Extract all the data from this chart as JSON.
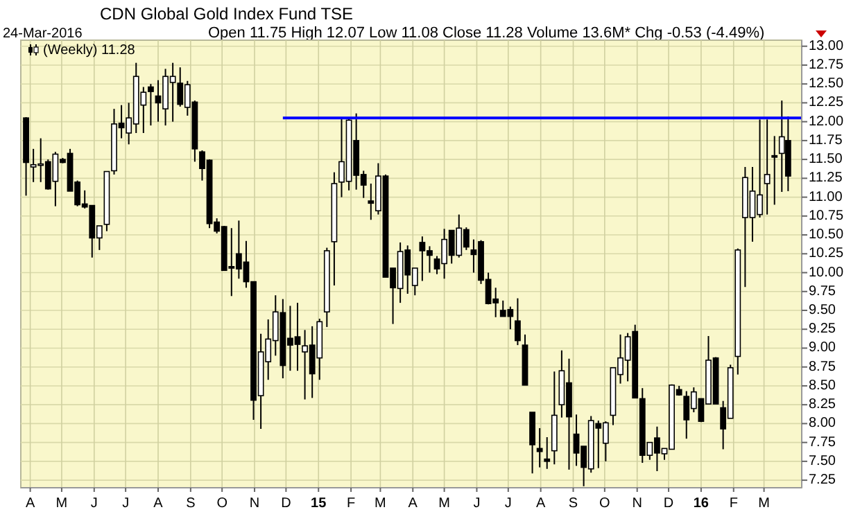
{
  "chart_data": {
    "type": "candlestick",
    "title": "CDN Global Gold Index Fund TSE",
    "annotations": [
      "24-Mar-2016",
      "Open 11.75 High 12.07 Low 11.08 Close 11.28 Volume 13.6M* Chg -0.53 (-4.49%)"
    ],
    "x": [
      "2014-03-28",
      "2014-04-04",
      "2014-04-11",
      "2014-04-18",
      "2014-04-25",
      "2014-05-02",
      "2014-05-09",
      "2014-05-16",
      "2014-05-23",
      "2014-05-30",
      "2014-06-06",
      "2014-06-13",
      "2014-06-20",
      "2014-06-27",
      "2014-07-04",
      "2014-07-11",
      "2014-07-18",
      "2014-07-25",
      "2014-08-01",
      "2014-08-08",
      "2014-08-15",
      "2014-08-22",
      "2014-08-29",
      "2014-09-05",
      "2014-09-12",
      "2014-09-19",
      "2014-09-26",
      "2014-10-03",
      "2014-10-10",
      "2014-10-17",
      "2014-10-24",
      "2014-10-31",
      "2014-11-07",
      "2014-11-14",
      "2014-11-21",
      "2014-11-28",
      "2014-12-05",
      "2014-12-12",
      "2014-12-19",
      "2014-12-26",
      "2015-01-02",
      "2015-01-09",
      "2015-01-16",
      "2015-01-23",
      "2015-01-30",
      "2015-02-06",
      "2015-02-13",
      "2015-02-20",
      "2015-02-27",
      "2015-03-06",
      "2015-03-13",
      "2015-03-20",
      "2015-03-27",
      "2015-04-03",
      "2015-04-10",
      "2015-04-17",
      "2015-04-24",
      "2015-05-01",
      "2015-05-08",
      "2015-05-15",
      "2015-05-22",
      "2015-05-29",
      "2015-06-05",
      "2015-06-12",
      "2015-06-19",
      "2015-06-26",
      "2015-07-03",
      "2015-07-10",
      "2015-07-17",
      "2015-07-24",
      "2015-07-31",
      "2015-08-07",
      "2015-08-14",
      "2015-08-21",
      "2015-08-28",
      "2015-09-04",
      "2015-09-11",
      "2015-09-18",
      "2015-09-25",
      "2015-10-02",
      "2015-10-09",
      "2015-10-16",
      "2015-10-23",
      "2015-10-30",
      "2015-11-06",
      "2015-11-13",
      "2015-11-20",
      "2015-11-27",
      "2015-12-04",
      "2015-12-11",
      "2015-12-18",
      "2015-12-25",
      "2016-01-01",
      "2016-01-08",
      "2016-01-15",
      "2016-01-22",
      "2016-01-29",
      "2016-02-05",
      "2016-02-12",
      "2016-02-19",
      "2016-02-26",
      "2016-03-04",
      "2016-03-11",
      "2016-03-18",
      "2016-03-24"
    ],
    "series": [
      {
        "name": "(Weekly) 11.28",
        "color": "#000000",
        "ohlc": [
          [
            12.05,
            12.06,
            11.02,
            11.46
          ],
          [
            11.4,
            11.64,
            11.2,
            11.43
          ],
          [
            11.43,
            11.78,
            11.2,
            11.44
          ],
          [
            11.47,
            11.5,
            11.1,
            11.11
          ],
          [
            11.21,
            11.6,
            10.88,
            11.57
          ],
          [
            11.5,
            11.52,
            11.45,
            11.46
          ],
          [
            11.58,
            11.64,
            11.08,
            11.08
          ],
          [
            11.2,
            11.22,
            10.88,
            10.9
          ],
          [
            10.91,
            11.09,
            10.85,
            10.87
          ],
          [
            10.89,
            10.89,
            10.2,
            10.46
          ],
          [
            10.46,
            10.62,
            10.3,
            10.62
          ],
          [
            10.64,
            11.34,
            10.55,
            11.34
          ],
          [
            11.35,
            12.17,
            11.3,
            11.97
          ],
          [
            11.98,
            12.22,
            11.78,
            11.92
          ],
          [
            11.85,
            12.25,
            11.7,
            12.05
          ],
          [
            11.97,
            12.78,
            11.85,
            12.6
          ],
          [
            12.22,
            12.46,
            11.85,
            12.39
          ],
          [
            12.46,
            12.5,
            11.95,
            12.4
          ],
          [
            12.34,
            12.55,
            12.0,
            12.25
          ],
          [
            12.17,
            12.7,
            11.95,
            12.6
          ],
          [
            12.52,
            12.78,
            12.0,
            12.6
          ],
          [
            12.51,
            12.72,
            12.2,
            12.23
          ],
          [
            12.19,
            12.54,
            12.08,
            12.49
          ],
          [
            12.26,
            12.28,
            11.47,
            11.64
          ],
          [
            11.6,
            11.62,
            11.22,
            11.38
          ],
          [
            11.49,
            11.5,
            10.59,
            10.65
          ],
          [
            10.67,
            10.72,
            10.52,
            10.55
          ],
          [
            10.61,
            10.62,
            10.03,
            10.03
          ],
          [
            10.08,
            10.59,
            9.69,
            10.06
          ],
          [
            10.25,
            10.69,
            9.92,
            10.05
          ],
          [
            10.14,
            10.42,
            9.8,
            9.88
          ],
          [
            9.88,
            9.88,
            8.05,
            8.31
          ],
          [
            8.37,
            9.19,
            7.93,
            8.95
          ],
          [
            8.82,
            9.38,
            8.58,
            9.12
          ],
          [
            9.1,
            9.7,
            8.9,
            9.48
          ],
          [
            9.47,
            9.65,
            8.6,
            8.77
          ],
          [
            9.13,
            9.56,
            8.7,
            9.04
          ],
          [
            9.15,
            9.6,
            8.7,
            9.05
          ],
          [
            8.95,
            9.24,
            8.32,
            9.03
          ],
          [
            9.04,
            9.29,
            8.34,
            8.66
          ],
          [
            8.87,
            9.39,
            8.58,
            9.35
          ],
          [
            9.48,
            10.33,
            9.28,
            10.29
          ],
          [
            10.41,
            11.33,
            9.83,
            11.18
          ],
          [
            11.2,
            12.05,
            11.0,
            11.47
          ],
          [
            11.21,
            12.05,
            11.09,
            12.02
          ],
          [
            11.75,
            12.11,
            11.1,
            11.29
          ],
          [
            11.3,
            11.35,
            10.99,
            11.16
          ],
          [
            10.95,
            11.18,
            10.7,
            10.92
          ],
          [
            10.82,
            11.45,
            10.77,
            11.28
          ],
          [
            11.28,
            11.3,
            9.94,
            9.94
          ],
          [
            10.06,
            10.06,
            9.32,
            9.8
          ],
          [
            9.79,
            10.4,
            9.6,
            10.28
          ],
          [
            10.3,
            10.36,
            9.72,
            9.97
          ],
          [
            9.83,
            10.06,
            9.7,
            10.06
          ],
          [
            10.4,
            10.48,
            9.89,
            10.29
          ],
          [
            10.29,
            10.35,
            10.0,
            10.23
          ],
          [
            10.18,
            10.22,
            9.98,
            10.05
          ],
          [
            10.12,
            10.58,
            9.92,
            10.44
          ],
          [
            10.56,
            10.56,
            10.12,
            10.23
          ],
          [
            10.23,
            10.77,
            10.2,
            10.59
          ],
          [
            10.57,
            10.6,
            10.3,
            10.34
          ],
          [
            10.3,
            10.44,
            10.0,
            10.24
          ],
          [
            10.41,
            10.43,
            9.85,
            9.9
          ],
          [
            9.91,
            10.0,
            9.58,
            9.59
          ],
          [
            9.65,
            9.8,
            9.41,
            9.6
          ],
          [
            9.5,
            9.63,
            9.42,
            9.42
          ],
          [
            9.51,
            9.55,
            9.25,
            9.42
          ],
          [
            9.36,
            9.66,
            9.04,
            9.1
          ],
          [
            9.04,
            9.18,
            8.51,
            8.51
          ],
          [
            8.15,
            8.15,
            7.34,
            7.72
          ],
          [
            7.67,
            7.94,
            7.42,
            7.63
          ],
          [
            7.53,
            7.82,
            7.4,
            7.5
          ],
          [
            7.64,
            8.69,
            7.46,
            8.11
          ],
          [
            8.25,
            8.97,
            8.08,
            8.7
          ],
          [
            8.54,
            8.86,
            7.39,
            8.09
          ],
          [
            7.86,
            8.12,
            7.44,
            7.61
          ],
          [
            7.7,
            7.7,
            7.17,
            7.42
          ],
          [
            7.4,
            8.1,
            7.35,
            8.04
          ],
          [
            8.0,
            8.04,
            7.41,
            7.94
          ],
          [
            7.74,
            8.03,
            7.5,
            8.01
          ],
          [
            8.11,
            8.74,
            7.98,
            8.74
          ],
          [
            8.65,
            9.18,
            8.53,
            8.87
          ],
          [
            8.84,
            9.2,
            8.56,
            9.15
          ],
          [
            9.22,
            9.31,
            8.34,
            8.34
          ],
          [
            8.33,
            8.47,
            7.48,
            7.58
          ],
          [
            7.58,
            7.75,
            7.52,
            7.75
          ],
          [
            7.81,
            7.96,
            7.37,
            7.61
          ],
          [
            7.6,
            7.67,
            7.52,
            7.67
          ],
          [
            7.66,
            8.52,
            7.66,
            8.51
          ],
          [
            8.45,
            8.5,
            8.37,
            8.38
          ],
          [
            8.36,
            8.43,
            7.8,
            8.05
          ],
          [
            8.2,
            8.48,
            8.15,
            8.42
          ],
          [
            8.33,
            8.33,
            8.02,
            8.03
          ],
          [
            8.26,
            9.16,
            8.26,
            8.84
          ],
          [
            8.87,
            8.88,
            8.26,
            8.26
          ],
          [
            8.21,
            8.3,
            7.66,
            7.93
          ],
          [
            8.07,
            8.78,
            8.07,
            8.74
          ],
          [
            8.89,
            10.32,
            8.65,
            10.3
          ],
          [
            10.73,
            11.4,
            9.81,
            11.26
          ],
          [
            10.73,
            11.4,
            10.41,
            11.08
          ],
          [
            10.77,
            12.03,
            10.73,
            11.03
          ],
          [
            11.18,
            12.03,
            10.77,
            11.3
          ],
          [
            11.55,
            11.81,
            10.9,
            11.53
          ],
          [
            11.58,
            12.28,
            11.07,
            11.8
          ],
          [
            11.75,
            12.07,
            11.08,
            11.28
          ]
        ]
      },
      {
        "type": "line",
        "color": "#0000ff",
        "x": [
          "2014-11-28",
          "2016-04-06"
        ],
        "values": [
          12.05,
          12.05
        ]
      }
    ],
    "xlim": [
      "2014-03-23",
      "2016-04-06"
    ],
    "xticks": [
      {
        "value": "2014-04-01",
        "label": "A"
      },
      {
        "value": "2014-05-01",
        "label": "M"
      },
      {
        "value": "2014-06-01",
        "label": "J"
      },
      {
        "value": "2014-07-01",
        "label": "J"
      },
      {
        "value": "2014-08-01",
        "label": "A"
      },
      {
        "value": "2014-09-01",
        "label": "S"
      },
      {
        "value": "2014-10-01",
        "label": "O"
      },
      {
        "value": "2014-11-01",
        "label": "N"
      },
      {
        "value": "2014-12-01",
        "label": "D"
      },
      {
        "value": "2015-01-01",
        "label": "15"
      },
      {
        "value": "2015-02-01",
        "label": "F"
      },
      {
        "value": "2015-03-01",
        "label": "M"
      },
      {
        "value": "2015-04-01",
        "label": "A"
      },
      {
        "value": "2015-05-01",
        "label": "M"
      },
      {
        "value": "2015-06-01",
        "label": "J"
      },
      {
        "value": "2015-07-01",
        "label": "J"
      },
      {
        "value": "2015-08-01",
        "label": "A"
      },
      {
        "value": "2015-09-01",
        "label": "S"
      },
      {
        "value": "2015-10-01",
        "label": "O"
      },
      {
        "value": "2015-11-01",
        "label": "N"
      },
      {
        "value": "2015-12-01",
        "label": "D"
      },
      {
        "value": "2016-01-01",
        "label": "16"
      },
      {
        "value": "2016-02-01",
        "label": "F"
      },
      {
        "value": "2016-03-01",
        "label": "M"
      }
    ],
    "ylim": [
      7.15,
      13.08
    ],
    "yticks": [
      {
        "value": 7.25,
        "label": "7.25"
      },
      {
        "value": 7.5,
        "label": "7.50"
      },
      {
        "value": 7.75,
        "label": "7.75"
      },
      {
        "value": 8,
        "label": "8.00"
      },
      {
        "value": 8.25,
        "label": "8.25"
      },
      {
        "value": 8.5,
        "label": "8.50"
      },
      {
        "value": 8.75,
        "label": "8.75"
      },
      {
        "value": 9,
        "label": "9.00"
      },
      {
        "value": 9.25,
        "label": "9.25"
      },
      {
        "value": 9.5,
        "label": "9.50"
      },
      {
        "value": 9.75,
        "label": "9.75"
      },
      {
        "value": 10,
        "label": "10.00"
      },
      {
        "value": 10.25,
        "label": "10.25"
      },
      {
        "value": 10.5,
        "label": "10.50"
      },
      {
        "value": 10.75,
        "label": "10.75"
      },
      {
        "value": 11,
        "label": "11.00"
      },
      {
        "value": 11.25,
        "label": "11.25"
      },
      {
        "value": 11.5,
        "label": "11.50"
      },
      {
        "value": 11.75,
        "label": "11.75"
      },
      {
        "value": 12,
        "label": "12.00"
      },
      {
        "value": 12.25,
        "label": "12.25"
      },
      {
        "value": 12.5,
        "label": "12.50"
      },
      {
        "value": 12.75,
        "label": "12.75"
      },
      {
        "value": 13,
        "label": "13.00"
      }
    ],
    "grid": true,
    "legend": "top left"
  }
}
